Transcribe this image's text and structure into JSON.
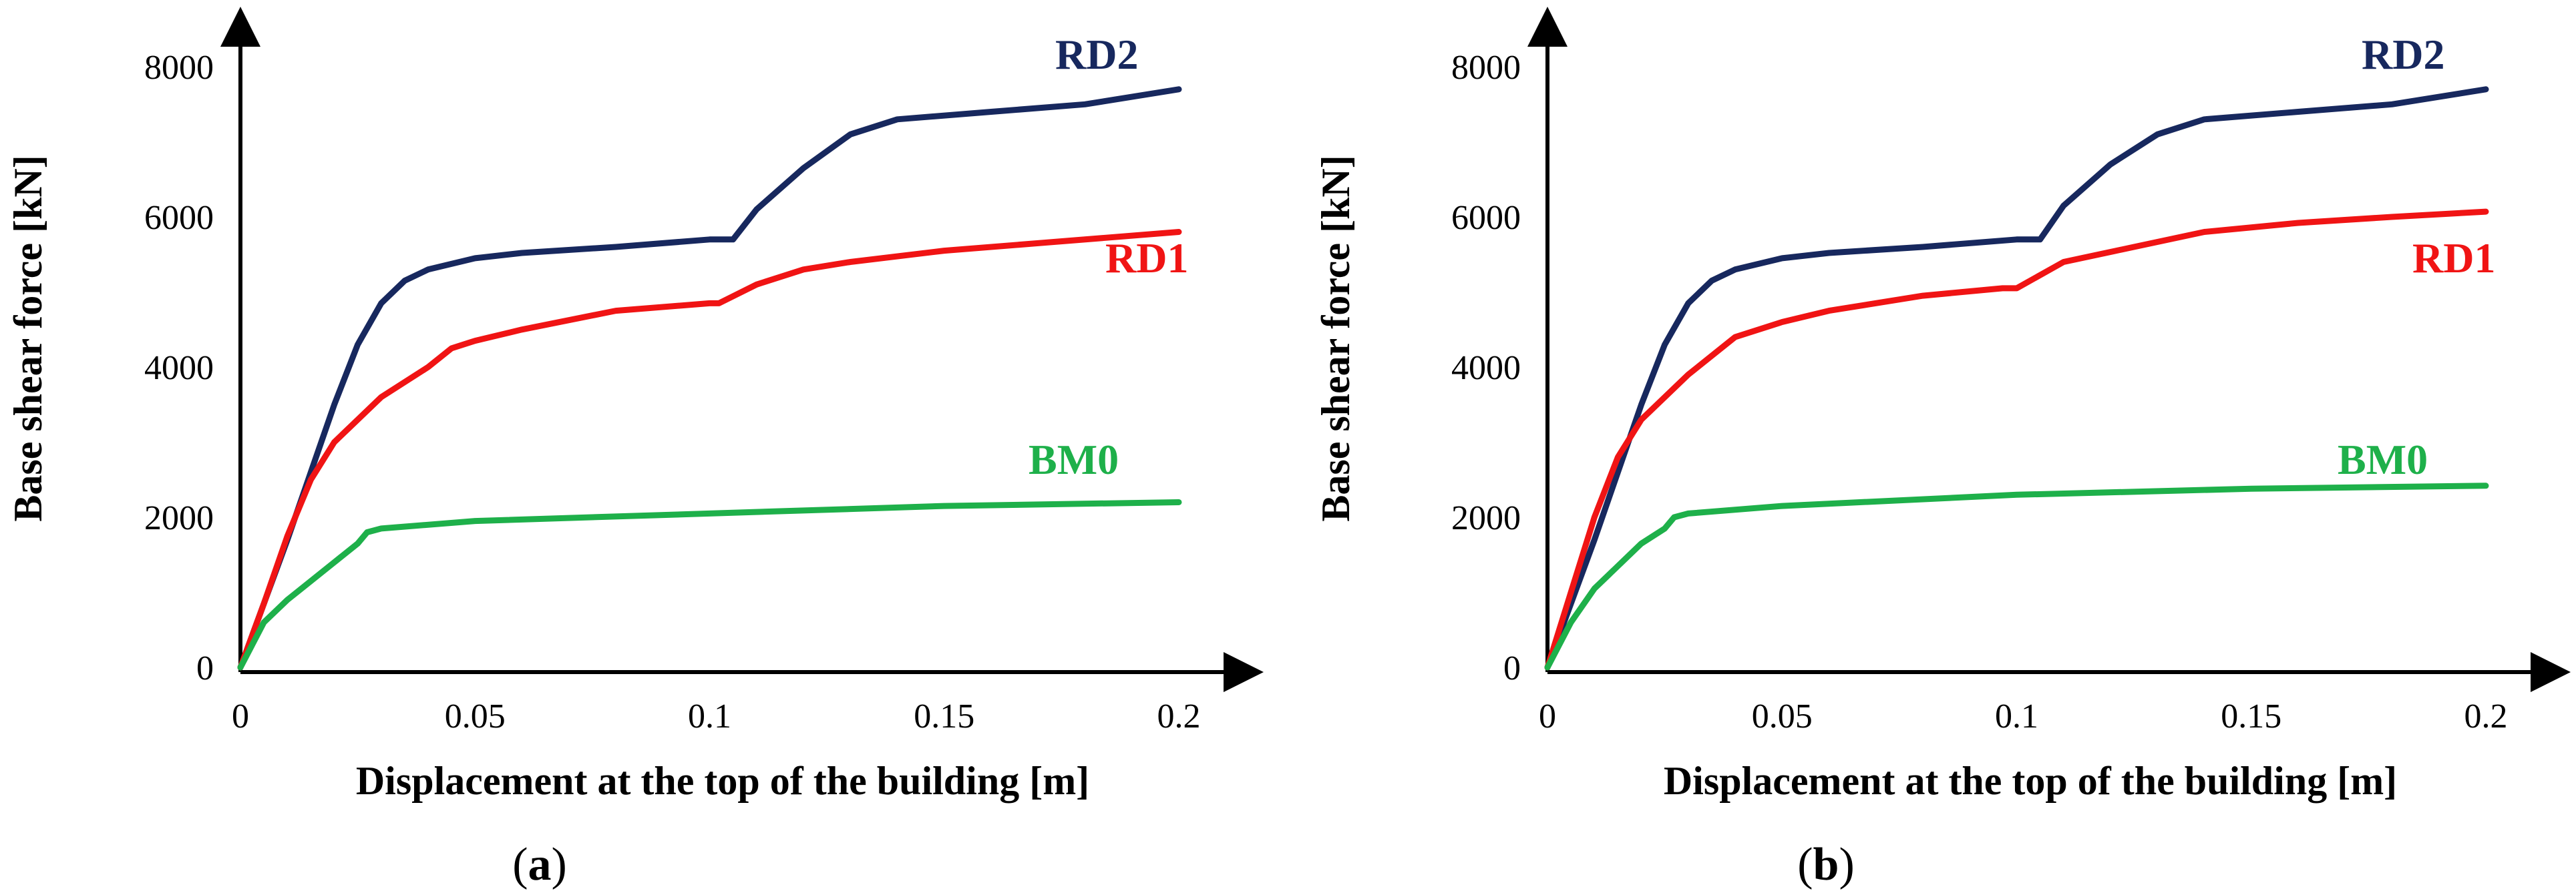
{
  "chart_data": [
    {
      "panel": "a",
      "caption_open": "(",
      "caption_letter": "a",
      "caption_close": ")",
      "type": "line",
      "xlabel": "Displacement at the top of the building [m]",
      "ylabel": "Base shear force [kN]",
      "xlim": [
        0,
        0.2
      ],
      "ylim": [
        0,
        8000
      ],
      "xticks": [
        0,
        0.05,
        0.1,
        0.15,
        0.2
      ],
      "xtick_labels": [
        "0",
        "0.05",
        "0.1",
        "0.15",
        "0.2"
      ],
      "yticks": [
        0,
        2000,
        4000,
        6000,
        8000
      ],
      "ytick_labels": [
        "0",
        "2000",
        "4000",
        "6000",
        "8000"
      ],
      "series": [
        {
          "name": "RD2",
          "color": "#17285e",
          "x": [
            0,
            0.005,
            0.01,
            0.015,
            0.02,
            0.025,
            0.03,
            0.035,
            0.04,
            0.05,
            0.06,
            0.08,
            0.1,
            0.102,
            0.105,
            0.11,
            0.12,
            0.13,
            0.14,
            0.16,
            0.18,
            0.2
          ],
          "y": [
            0,
            850,
            1700,
            2600,
            3500,
            4300,
            4850,
            5150,
            5300,
            5450,
            5520,
            5600,
            5700,
            5700,
            5700,
            6100,
            6650,
            7100,
            7300,
            7400,
            7500,
            7700
          ]
        },
        {
          "name": "RD1",
          "color": "#f01414",
          "x": [
            0,
            0.005,
            0.01,
            0.015,
            0.02,
            0.03,
            0.04,
            0.045,
            0.05,
            0.06,
            0.08,
            0.1,
            0.102,
            0.11,
            0.12,
            0.13,
            0.15,
            0.17,
            0.2
          ],
          "y": [
            0,
            850,
            1750,
            2500,
            3000,
            3600,
            4000,
            4250,
            4350,
            4500,
            4750,
            4850,
            4850,
            5100,
            5300,
            5400,
            5550,
            5650,
            5800
          ]
        },
        {
          "name": "BM0",
          "color": "#1eb04a",
          "x": [
            0,
            0.005,
            0.01,
            0.02,
            0.025,
            0.027,
            0.03,
            0.05,
            0.1,
            0.15,
            0.2
          ],
          "y": [
            0,
            600,
            900,
            1400,
            1650,
            1800,
            1850,
            1950,
            2050,
            2150,
            2200
          ]
        }
      ]
    },
    {
      "panel": "b",
      "caption_open": "(",
      "caption_letter": "b",
      "caption_close": ")",
      "type": "line",
      "xlabel": "Displacement at the top of the building [m]",
      "ylabel": "Base shear force [kN]",
      "xlim": [
        0,
        0.2
      ],
      "ylim": [
        0,
        8000
      ],
      "xticks": [
        0,
        0.05,
        0.1,
        0.15,
        0.2
      ],
      "xtick_labels": [
        "0",
        "0.05",
        "0.1",
        "0.15",
        "0.2"
      ],
      "yticks": [
        0,
        2000,
        4000,
        6000,
        8000
      ],
      "ytick_labels": [
        "0",
        "2000",
        "4000",
        "6000",
        "8000"
      ],
      "series": [
        {
          "name": "RD2",
          "color": "#17285e",
          "x": [
            0,
            0.005,
            0.01,
            0.015,
            0.02,
            0.025,
            0.03,
            0.035,
            0.04,
            0.05,
            0.06,
            0.08,
            0.1,
            0.102,
            0.105,
            0.11,
            0.12,
            0.13,
            0.14,
            0.16,
            0.18,
            0.2
          ],
          "y": [
            0,
            850,
            1700,
            2600,
            3500,
            4300,
            4850,
            5150,
            5300,
            5450,
            5520,
            5600,
            5700,
            5700,
            5700,
            6150,
            6700,
            7100,
            7300,
            7400,
            7500,
            7700
          ]
        },
        {
          "name": "RD1",
          "color": "#f01414",
          "x": [
            0,
            0.005,
            0.01,
            0.015,
            0.02,
            0.03,
            0.04,
            0.05,
            0.06,
            0.08,
            0.097,
            0.1,
            0.11,
            0.125,
            0.14,
            0.16,
            0.18,
            0.2
          ],
          "y": [
            0,
            1000,
            2000,
            2800,
            3300,
            3900,
            4400,
            4600,
            4750,
            4950,
            5050,
            5050,
            5400,
            5600,
            5800,
            5920,
            6000,
            6070
          ]
        },
        {
          "name": "BM0",
          "color": "#1eb04a",
          "x": [
            0,
            0.005,
            0.01,
            0.02,
            0.025,
            0.027,
            0.03,
            0.05,
            0.1,
            0.15,
            0.2
          ],
          "y": [
            0,
            600,
            1050,
            1650,
            1850,
            2000,
            2050,
            2150,
            2300,
            2380,
            2420
          ]
        }
      ]
    }
  ]
}
